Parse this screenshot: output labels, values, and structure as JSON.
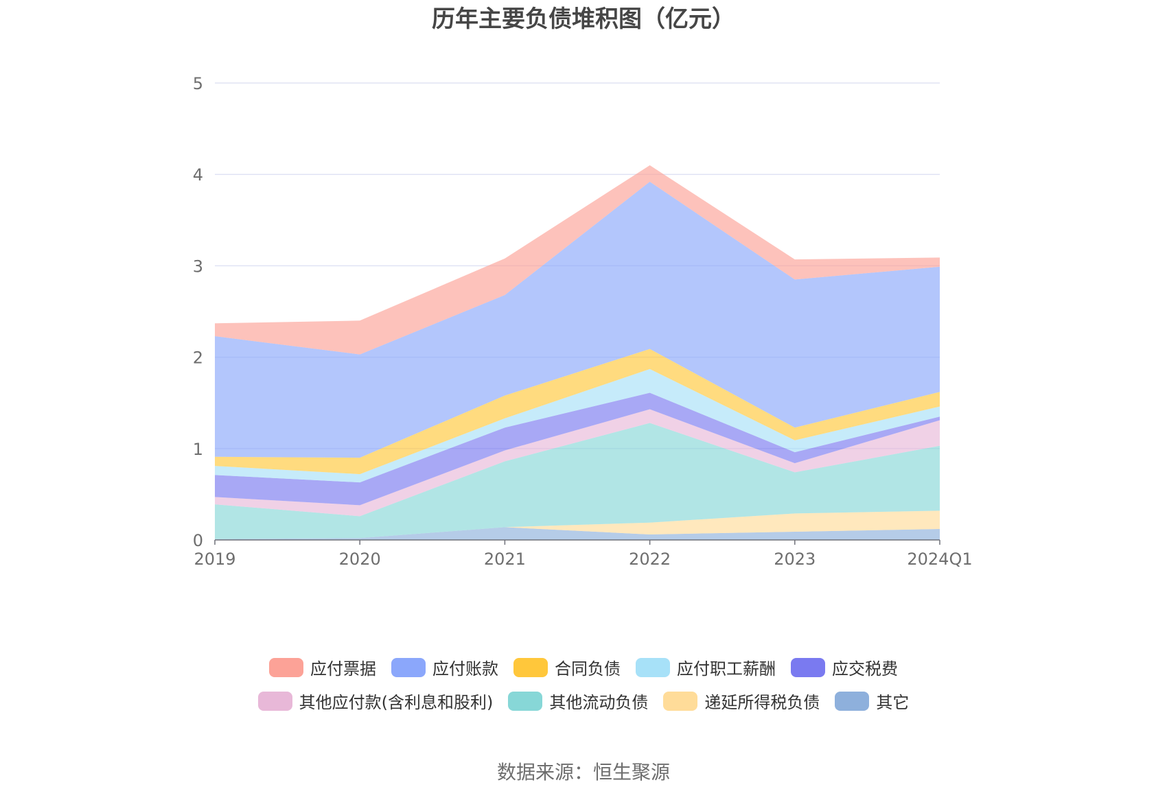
{
  "chart_data": {
    "type": "area",
    "stacked": true,
    "title": "历年主要负债堆积图（亿元）",
    "categories": [
      "2019",
      "2020",
      "2021",
      "2022",
      "2023",
      "2024Q1"
    ],
    "ylim": [
      0,
      5
    ],
    "yticks": [
      0,
      1,
      2,
      3,
      4,
      5
    ],
    "grid": true,
    "legend_position": "bottom",
    "series": [
      {
        "name": "其它",
        "color": "#8eb0dc",
        "values": [
          0.01,
          0.02,
          0.14,
          0.06,
          0.09,
          0.12
        ]
      },
      {
        "name": "递延所得税负债",
        "color": "#ffdc99",
        "values": [
          0.0,
          0.0,
          0.0,
          0.13,
          0.2,
          0.2
        ]
      },
      {
        "name": "其他流动负债",
        "color": "#87d7d7",
        "values": [
          0.38,
          0.24,
          0.72,
          1.09,
          0.45,
          0.71
        ]
      },
      {
        "name": "其他应付款(含利息和股利)",
        "color": "#e8b8d8",
        "values": [
          0.08,
          0.12,
          0.12,
          0.15,
          0.1,
          0.28
        ]
      },
      {
        "name": "应交税费",
        "color": "#7a7af0",
        "values": [
          0.24,
          0.25,
          0.25,
          0.18,
          0.12,
          0.04
        ]
      },
      {
        "name": "应付职工薪酬",
        "color": "#a7e1f8",
        "values": [
          0.1,
          0.09,
          0.1,
          0.26,
          0.13,
          0.11
        ]
      },
      {
        "name": "合同负债",
        "color": "#ffc73b",
        "values": [
          0.1,
          0.18,
          0.25,
          0.22,
          0.14,
          0.16
        ]
      },
      {
        "name": "应付账款",
        "color": "#8ba7fb",
        "values": [
          1.32,
          1.13,
          1.1,
          1.83,
          1.62,
          1.37
        ]
      },
      {
        "name": "应付票据",
        "color": "#fca297",
        "values": [
          0.14,
          0.37,
          0.4,
          0.18,
          0.22,
          0.1
        ]
      }
    ]
  },
  "legend": {
    "row1": [
      {
        "label": "应付票据",
        "color": "#fca297"
      },
      {
        "label": "应付账款",
        "color": "#8ba7fb"
      },
      {
        "label": "合同负债",
        "color": "#ffc73b"
      },
      {
        "label": "应付职工薪酬",
        "color": "#a7e1f8"
      },
      {
        "label": "应交税费",
        "color": "#7a7af0"
      }
    ],
    "row2": [
      {
        "label": "其他应付款(含利息和股利)",
        "color": "#e8b8d8"
      },
      {
        "label": "其他流动负债",
        "color": "#87d7d7"
      },
      {
        "label": "递延所得税负债",
        "color": "#ffdc99"
      },
      {
        "label": "其它",
        "color": "#8eb0dc"
      }
    ]
  },
  "source": "数据来源：恒生聚源"
}
